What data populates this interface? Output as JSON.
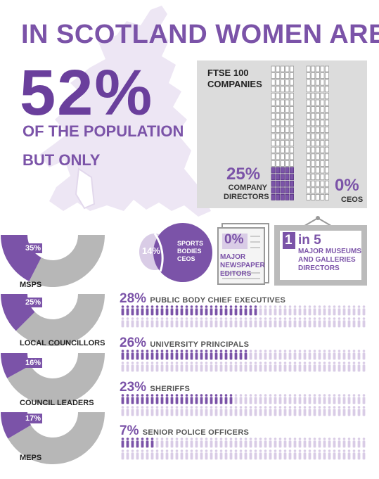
{
  "headline": "IN SCOTLAND WOMEN ARE",
  "population_pct": "52%",
  "population_label": "OF THE POPULATION",
  "but_only": "BUT ONLY",
  "ftse": {
    "title": "FTSE 100 COMPANIES",
    "directors_pct": "25%",
    "directors_label": "COMPANY DIRECTORS",
    "ceos_pct": "0%",
    "ceos_label": "CEOS",
    "directors_value": 0.25,
    "ceos_value": 0
  },
  "sports": {
    "pct": "14%",
    "label": "SPORTS BODIES CEOS",
    "value": 0.14
  },
  "newspaper": {
    "pct": "0%",
    "label": "MAJOR NEWSPAPER EDITORS"
  },
  "museums": {
    "num": "1",
    "rest": "in 5",
    "label": "MAJOR MUSEUMS AND GALLERIES DIRECTORS"
  },
  "colors": {
    "purple": "#7b53a8",
    "light_purple": "#d9cce6",
    "grey": "#b7b7b7",
    "map": "#ede6f4"
  },
  "chart_data": [
    {
      "type": "pie",
      "categories": [
        "MSPS",
        "LOCAL COUNCILLORS",
        "COUNCIL LEADERS",
        "MEPS"
      ],
      "values": [
        35,
        25,
        16,
        17
      ],
      "labels": [
        "35%",
        "25%",
        "16%",
        "17%"
      ]
    },
    {
      "type": "bar",
      "categories": [
        "PUBLIC BODY CHIEF EXECUTIVES",
        "UNIVERSITY PRINCIPALS",
        "SHERIFFS",
        "SENIOR POLICE OFFICERS"
      ],
      "values": [
        28,
        26,
        23,
        7
      ],
      "labels": [
        "28%",
        "26%",
        "23%",
        "7%"
      ]
    }
  ]
}
